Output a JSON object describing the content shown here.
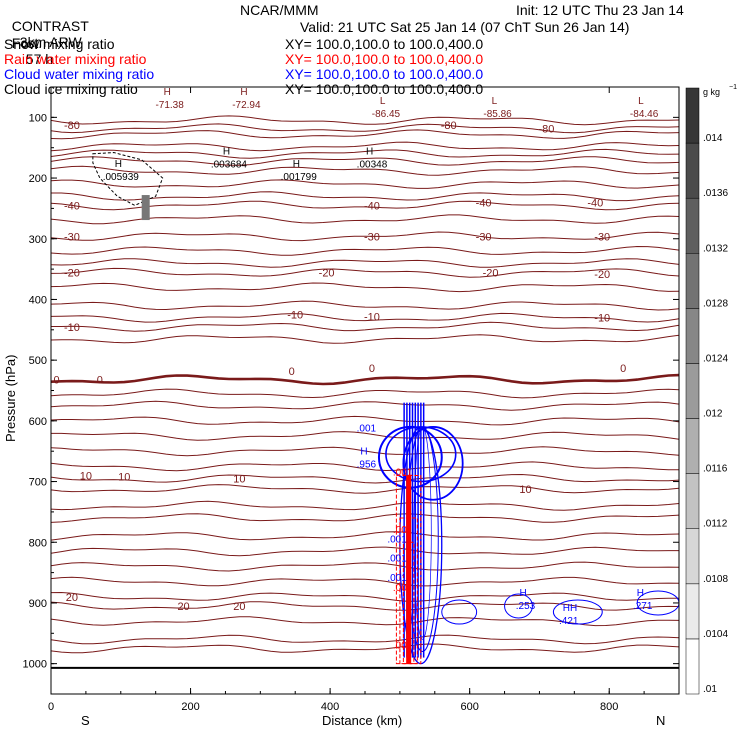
{
  "header": {
    "model": "CONTRAST",
    "run": "3km ARW",
    "center": "NCAR/MMM",
    "init": "Init: 12 UTC Thu 23 Jan 14",
    "fcst_label": "Fcst:",
    "fcst_value": "57 h",
    "valid": "Valid: 21 UTC Sat 25 Jan 14 (07 ChT Sun 26 Jan 14)",
    "fields": [
      {
        "name": "Snow mixing ratio",
        "xy": "XY= 100.0,100.0 to 100.0,400.0",
        "color": "#000000"
      },
      {
        "name": "Rain water mixing ratio",
        "xy": "XY= 100.0,100.0 to 100.0,400.0",
        "color": "#ff0000"
      },
      {
        "name": "Cloud water mixing ratio",
        "xy": "XY= 100.0,100.0 to 100.0,400.0",
        "color": "#0000ff"
      },
      {
        "name": "Cloud ice mixing ratio",
        "xy": "XY= 100.0,100.0 to 100.0,400.0",
        "color": "#000000"
      }
    ]
  },
  "chart_data": {
    "type": "heatmap",
    "title": "",
    "xlabel": "Distance (km)",
    "ylabel": "Pressure (hPa)",
    "xlim": [
      0,
      900
    ],
    "ylim": [
      1050,
      50
    ],
    "x_ticks": [
      0,
      200,
      400,
      600,
      800
    ],
    "y_ticks": [
      100,
      200,
      300,
      400,
      500,
      600,
      700,
      800,
      900,
      1000
    ],
    "x_end_labels": {
      "left": "S",
      "right": "N"
    },
    "colorbar": {
      "unit": "g kg",
      "unit_exp": "−1",
      "ticks": [
        ".01",
        ".0104",
        ".0108",
        ".0112",
        ".0116",
        ".012",
        ".0124",
        ".0128",
        ".0132",
        ".0136",
        ".014"
      ]
    },
    "temperature_labels": [
      {
        "x": 30,
        "p": 113,
        "text": "-80"
      },
      {
        "x": 570,
        "p": 113,
        "text": "-80"
      },
      {
        "x": 710,
        "p": 118,
        "text": "-80"
      },
      {
        "x": 30,
        "p": 245,
        "text": "-40"
      },
      {
        "x": 460,
        "p": 245,
        "text": "-40"
      },
      {
        "x": 620,
        "p": 240,
        "text": "-40"
      },
      {
        "x": 780,
        "p": 240,
        "text": "-40"
      },
      {
        "x": 30,
        "p": 296,
        "text": "-30"
      },
      {
        "x": 460,
        "p": 296,
        "text": "-30"
      },
      {
        "x": 620,
        "p": 296,
        "text": "-30"
      },
      {
        "x": 790,
        "p": 296,
        "text": "-30"
      },
      {
        "x": 30,
        "p": 356,
        "text": "-20"
      },
      {
        "x": 395,
        "p": 356,
        "text": "-20"
      },
      {
        "x": 630,
        "p": 356,
        "text": "-20"
      },
      {
        "x": 790,
        "p": 358,
        "text": "-20"
      },
      {
        "x": 30,
        "p": 445,
        "text": "-10"
      },
      {
        "x": 350,
        "p": 425,
        "text": "-10"
      },
      {
        "x": 460,
        "p": 428,
        "text": "-10"
      },
      {
        "x": 790,
        "p": 430,
        "text": "-10"
      },
      {
        "x": 8,
        "p": 532,
        "text": "0"
      },
      {
        "x": 70,
        "p": 532,
        "text": "0"
      },
      {
        "x": 345,
        "p": 518,
        "text": "0"
      },
      {
        "x": 460,
        "p": 513,
        "text": "0"
      },
      {
        "x": 820,
        "p": 513,
        "text": "0"
      },
      {
        "x": 50,
        "p": 690,
        "text": "10"
      },
      {
        "x": 105,
        "p": 692,
        "text": "10"
      },
      {
        "x": 270,
        "p": 695,
        "text": "10"
      },
      {
        "x": 680,
        "p": 712,
        "text": "10"
      },
      {
        "x": 30,
        "p": 890,
        "text": "20"
      },
      {
        "x": 190,
        "p": 905,
        "text": "20"
      },
      {
        "x": 270,
        "p": 905,
        "text": "20"
      }
    ],
    "extrema_labels": [
      {
        "x": 170,
        "p": 70,
        "mark": "H",
        "value": "-71.38"
      },
      {
        "x": 280,
        "p": 70,
        "mark": "H",
        "value": "-72.94"
      },
      {
        "x": 480,
        "p": 85,
        "mark": "L",
        "value": "-86.45"
      },
      {
        "x": 640,
        "p": 85,
        "mark": "L",
        "value": "-85.86"
      },
      {
        "x": 850,
        "p": 85,
        "mark": "L",
        "value": "-84.46"
      },
      {
        "x": 100,
        "p": 188,
        "mark": "H",
        "value": ".005939"
      },
      {
        "x": 255,
        "p": 168,
        "mark": "H",
        "value": ".003684"
      },
      {
        "x": 355,
        "p": 188,
        "mark": "H",
        "value": ".001799"
      },
      {
        "x": 460,
        "p": 168,
        "mark": "H",
        "value": ".00348"
      },
      {
        "x": 452,
        "p": 603,
        "mark": "",
        "value": ".001"
      },
      {
        "x": 452,
        "p": 662,
        "mark": "H",
        "value": ".956"
      },
      {
        "x": 680,
        "p": 895,
        "mark": "H",
        "value": ".253"
      },
      {
        "x": 742,
        "p": 920,
        "mark": "HH",
        "value": ".421"
      },
      {
        "x": 848,
        "p": 895,
        "mark": "H",
        "value": ".271"
      }
    ],
    "cloud_water_labels": [
      ".001",
      ".001",
      ".001"
    ],
    "rain_labels": [
      ".001",
      ".00",
      ".00",
      ".00"
    ]
  }
}
